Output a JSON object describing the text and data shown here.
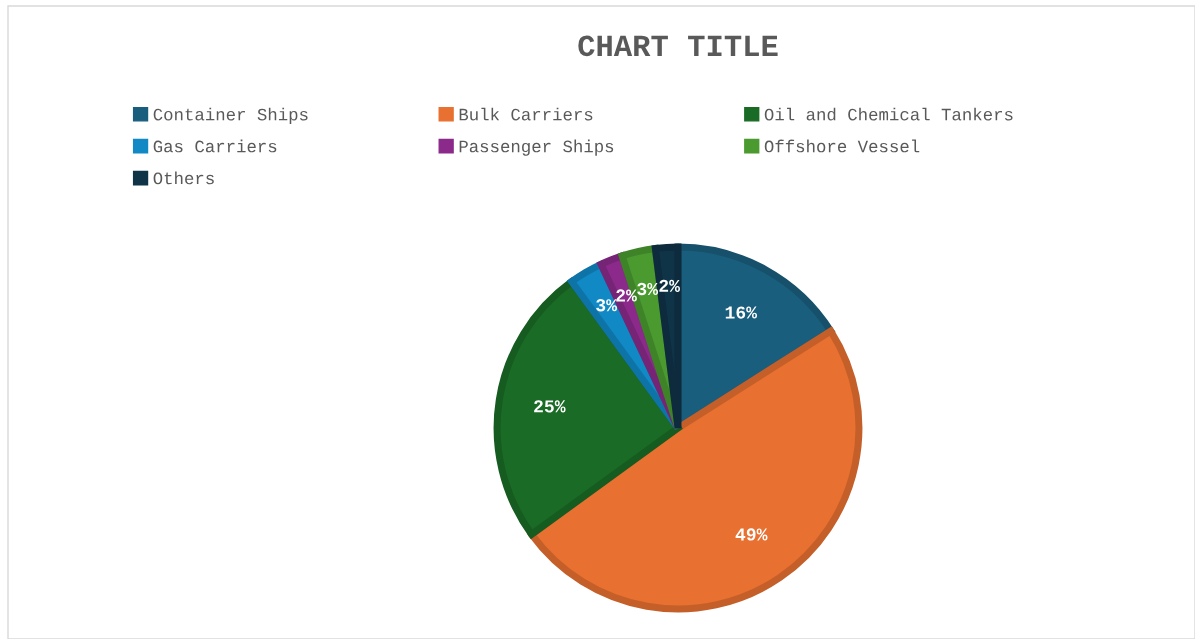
{
  "chart_data": {
    "type": "pie",
    "title": "CHART TITLE",
    "categories": [
      "Container Ships",
      "Bulk Carriers",
      "Oil and Chemical Tankers",
      "Gas Carriers",
      "Passenger Ships",
      "Offshore Vessel",
      "Others"
    ],
    "values": [
      16,
      49,
      25,
      3,
      2,
      3,
      2
    ],
    "colors": [
      "#1a5e7e",
      "#e87030",
      "#1a6b25",
      "#1189c5",
      "#8b2a8a",
      "#4a9a30",
      "#0f3347"
    ],
    "value_labels": [
      "16%",
      "49%",
      "25%",
      "3%",
      "2%",
      "3%",
      "2%"
    ],
    "legend": "top"
  }
}
